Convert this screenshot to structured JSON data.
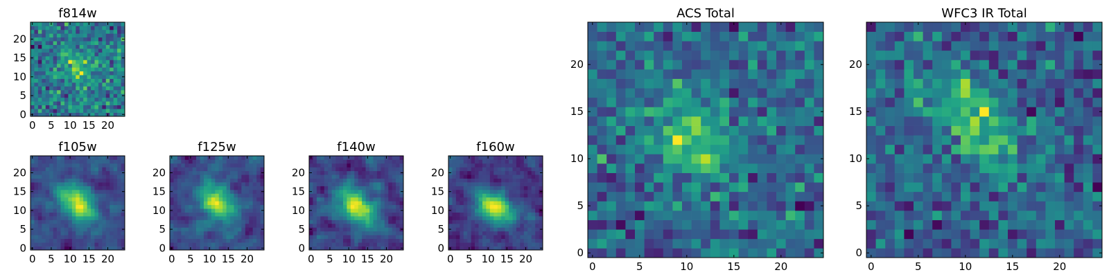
{
  "chart_data": [
    {
      "type": "heatmap",
      "title": "f814w",
      "xticks": [
        "0",
        "5",
        "10",
        "15",
        "20"
      ],
      "yticks": [
        "0",
        "5",
        "10",
        "15",
        "20"
      ],
      "xlim": [
        0,
        25
      ],
      "ylim": [
        0,
        25
      ],
      "grid": false,
      "colormap": "viridis",
      "grid_size": 25,
      "blob_center": [
        12,
        12
      ],
      "blob_strength": 0.18,
      "noise": 1.0,
      "seed": 11,
      "smooth": false
    },
    {
      "type": "heatmap",
      "title": "f105w",
      "xticks": [
        "0",
        "5",
        "10",
        "15",
        "20"
      ],
      "yticks": [
        "0",
        "5",
        "10",
        "15",
        "20"
      ],
      "xlim": [
        0,
        25
      ],
      "ylim": [
        0,
        25
      ],
      "grid": false,
      "colormap": "viridis",
      "grid_size": 25,
      "blob_center": [
        12,
        12
      ],
      "blob_strength": 0.45,
      "noise": 0.8,
      "seed": 23,
      "smooth": true
    },
    {
      "type": "heatmap",
      "title": "f125w",
      "xticks": [
        "0",
        "5",
        "10",
        "15",
        "20"
      ],
      "yticks": [
        "0",
        "5",
        "10",
        "15",
        "20"
      ],
      "xlim": [
        0,
        25
      ],
      "ylim": [
        0,
        25
      ],
      "grid": false,
      "colormap": "viridis",
      "grid_size": 25,
      "blob_center": [
        12,
        12
      ],
      "blob_strength": 0.4,
      "noise": 0.8,
      "seed": 37,
      "smooth": true
    },
    {
      "type": "heatmap",
      "title": "f140w",
      "xticks": [
        "0",
        "5",
        "10",
        "15",
        "20"
      ],
      "yticks": [
        "0",
        "5",
        "10",
        "15",
        "20"
      ],
      "xlim": [
        0,
        25
      ],
      "ylim": [
        0,
        25
      ],
      "grid": false,
      "colormap": "viridis",
      "grid_size": 25,
      "blob_center": [
        12,
        11
      ],
      "blob_strength": 0.42,
      "noise": 0.8,
      "seed": 41,
      "smooth": true
    },
    {
      "type": "heatmap",
      "title": "f160w",
      "xticks": [
        "0",
        "5",
        "10",
        "15",
        "20"
      ],
      "yticks": [
        "0",
        "5",
        "10",
        "15",
        "20"
      ],
      "xlim": [
        0,
        25
      ],
      "ylim": [
        0,
        25
      ],
      "grid": false,
      "colormap": "viridis",
      "grid_size": 25,
      "blob_center": [
        12,
        11
      ],
      "blob_strength": 0.44,
      "noise": 0.8,
      "seed": 53,
      "smooth": true
    },
    {
      "type": "heatmap",
      "title": "ACS Total",
      "xticks": [
        "0",
        "5",
        "10",
        "15",
        "20"
      ],
      "yticks": [
        "0",
        "5",
        "10",
        "15",
        "20"
      ],
      "xlim": [
        0,
        25
      ],
      "ylim": [
        0,
        25
      ],
      "grid": false,
      "colormap": "viridis",
      "grid_size": 25,
      "blob_center": [
        11,
        12
      ],
      "blob_strength": 0.25,
      "noise": 1.0,
      "seed": 67,
      "smooth": false
    },
    {
      "type": "heatmap",
      "title": "WFC3 IR Total",
      "xticks": [
        "0",
        "5",
        "10",
        "15",
        "20"
      ],
      "yticks": [
        "0",
        "5",
        "10",
        "15",
        "20"
      ],
      "xlim": [
        0,
        25
      ],
      "ylim": [
        0,
        25
      ],
      "grid": false,
      "colormap": "viridis",
      "grid_size": 25,
      "blob_center": [
        11,
        14
      ],
      "blob_strength": 0.3,
      "noise": 1.0,
      "seed": 79,
      "smooth": false
    }
  ]
}
